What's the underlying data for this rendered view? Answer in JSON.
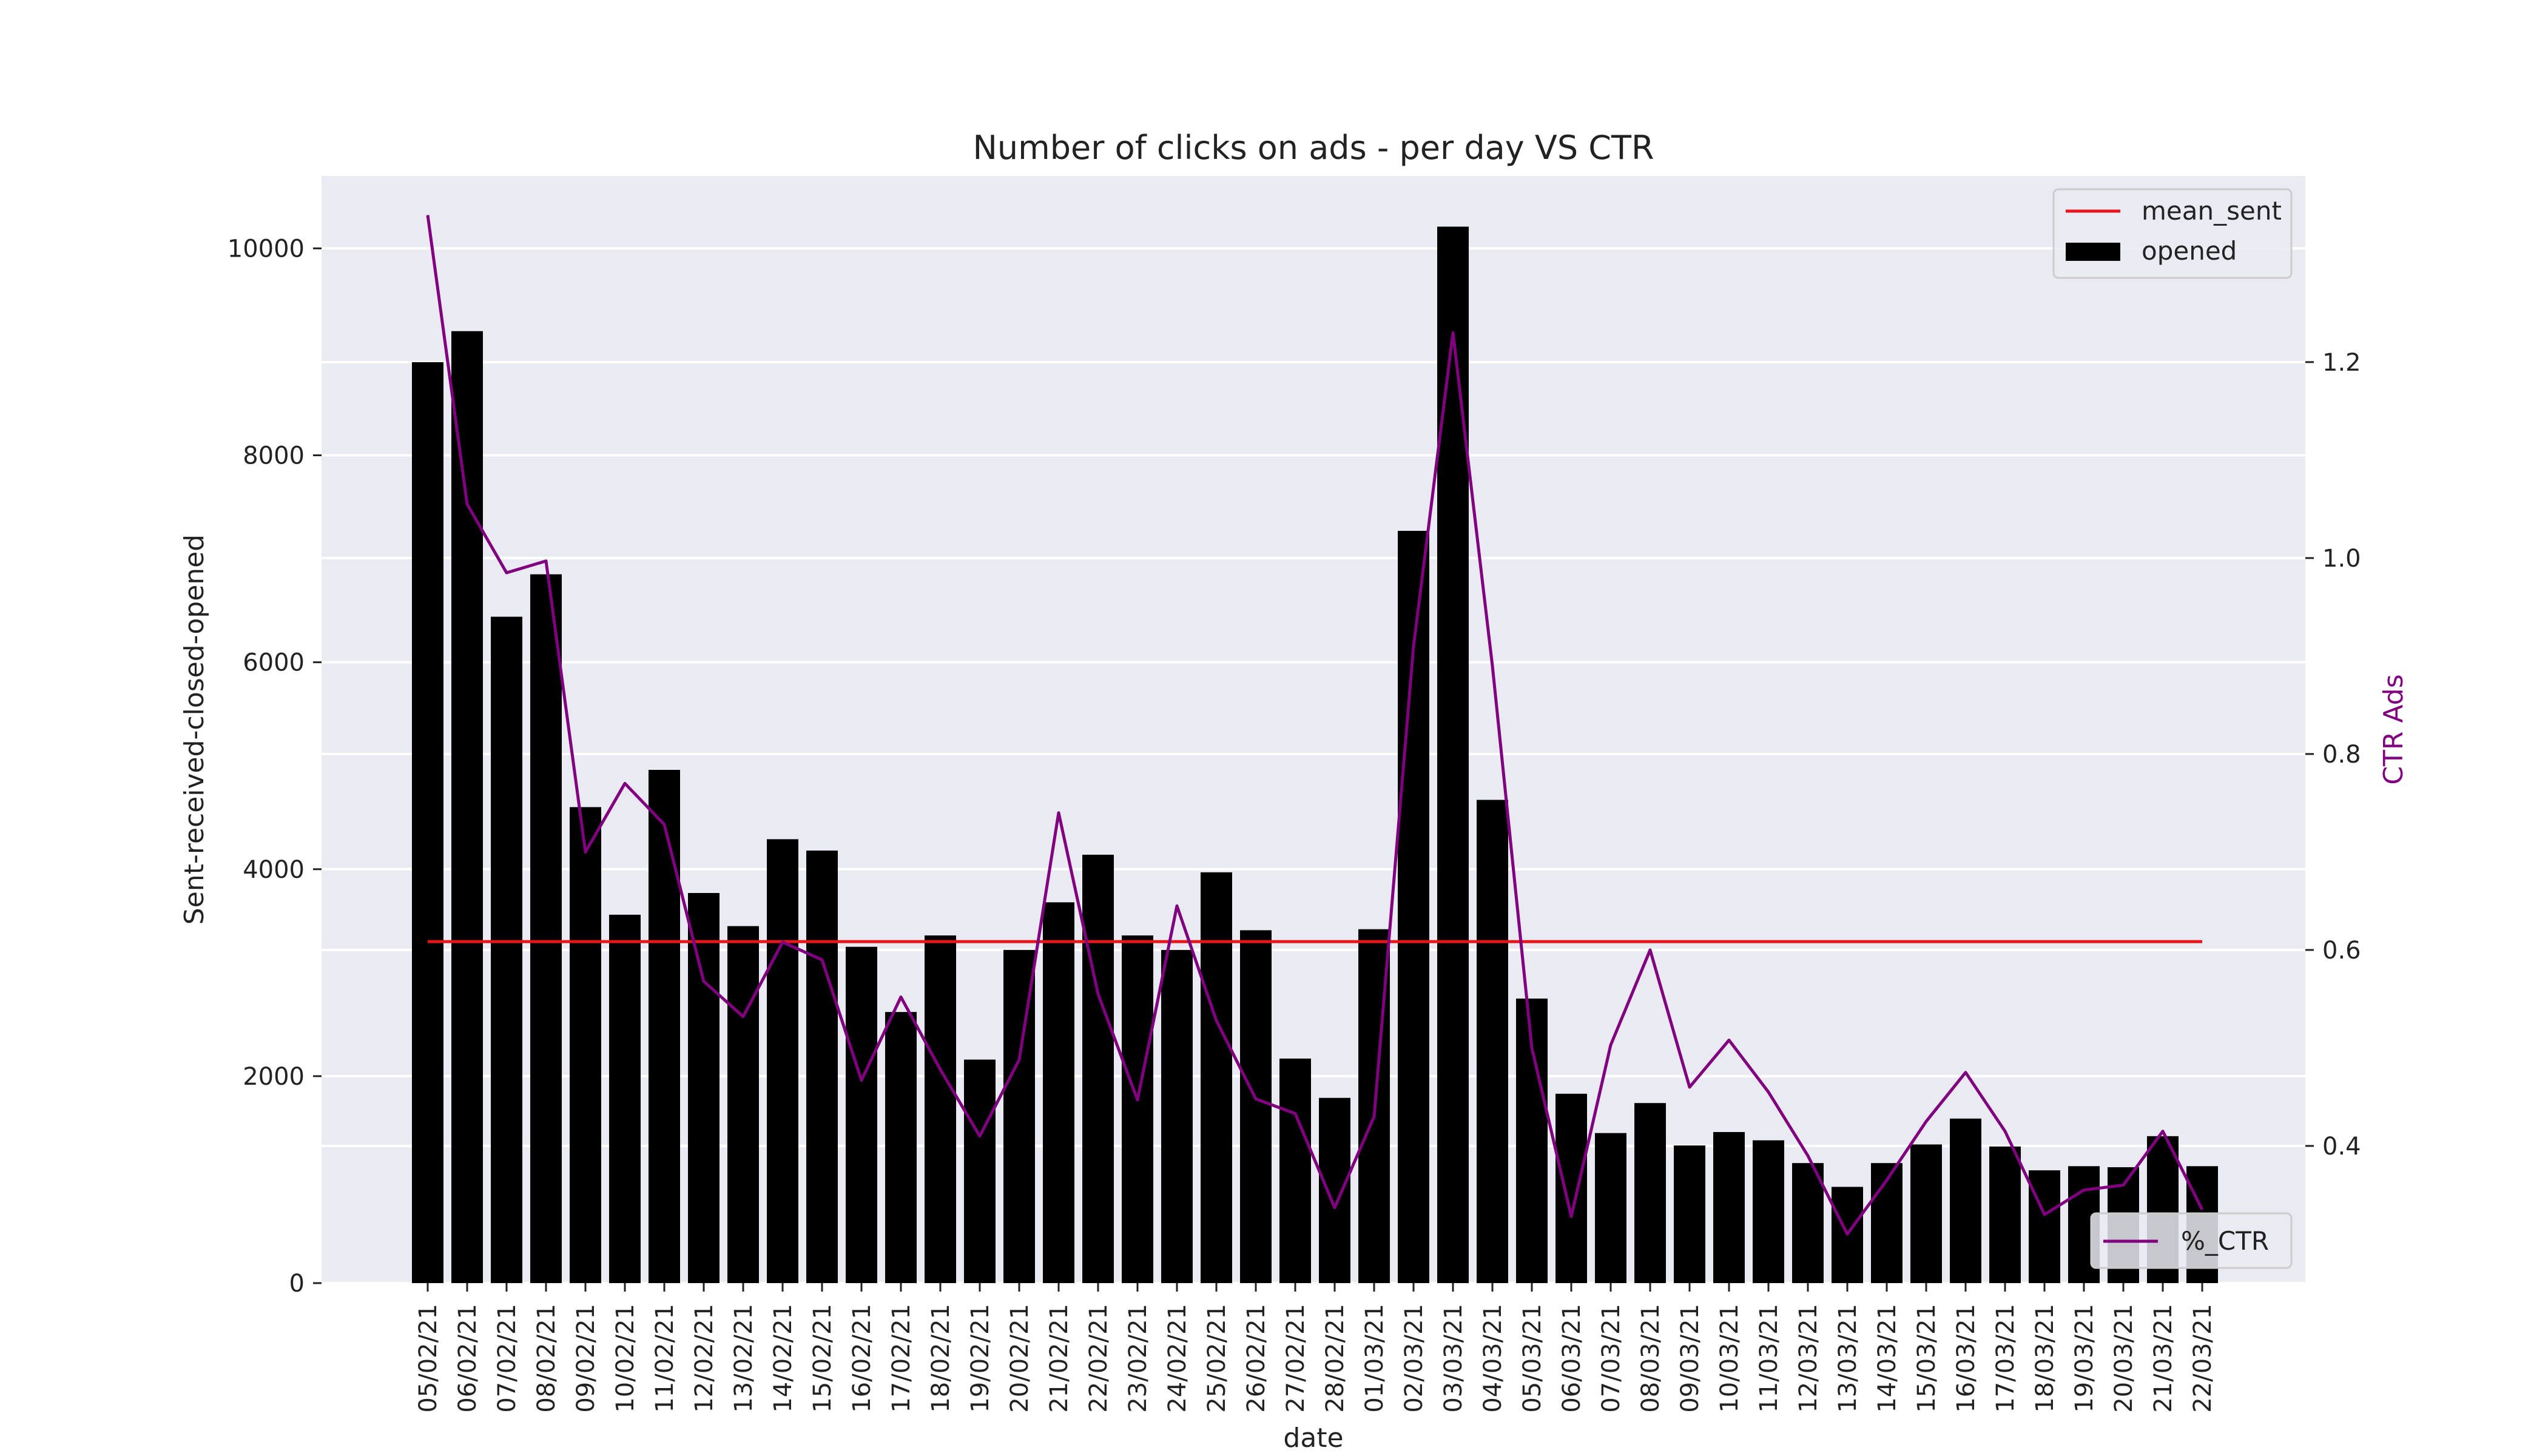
{
  "chart_data": {
    "type": "bar",
    "title": "Number of clicks on ads - per day VS CTR",
    "xlabel": "date",
    "ylabel": "Sent-received-closed-opened",
    "y2label": "CTR Ads",
    "ylim": [
      0,
      10700
    ],
    "y2lim": [
      0.26,
      1.39
    ],
    "yticks": [
      0,
      2000,
      4000,
      6000,
      8000,
      10000
    ],
    "y2ticks": [
      0.4,
      0.6,
      0.8,
      1.0,
      1.2
    ],
    "categories": [
      "05/02/21",
      "06/02/21",
      "07/02/21",
      "08/02/21",
      "09/02/21",
      "10/02/21",
      "11/02/21",
      "12/02/21",
      "13/02/21",
      "14/02/21",
      "15/02/21",
      "16/02/21",
      "17/02/21",
      "18/02/21",
      "19/02/21",
      "20/02/21",
      "21/02/21",
      "22/02/21",
      "23/02/21",
      "24/02/21",
      "25/02/21",
      "26/02/21",
      "27/02/21",
      "28/02/21",
      "01/03/21",
      "02/03/21",
      "03/03/21",
      "04/03/21",
      "05/03/21",
      "06/03/21",
      "07/03/21",
      "08/03/21",
      "09/03/21",
      "10/03/21",
      "11/03/21",
      "12/03/21",
      "13/03/21",
      "14/03/21",
      "15/03/21",
      "16/03/21",
      "17/03/21",
      "18/03/21",
      "19/03/21",
      "20/03/21",
      "21/03/21",
      "22/03/21"
    ],
    "series": [
      {
        "name": "opened",
        "type": "bar",
        "axis": "left",
        "color": "#000000",
        "values": [
          8900,
          9200,
          6440,
          6850,
          4600,
          3560,
          4960,
          3770,
          3450,
          4290,
          4180,
          3250,
          2620,
          3360,
          2160,
          3220,
          3680,
          4140,
          3360,
          3220,
          3970,
          3410,
          2170,
          1790,
          3420,
          7270,
          10210,
          4670,
          2750,
          1830,
          1450,
          1740,
          1330,
          1460,
          1380,
          1160,
          930,
          1160,
          1340,
          1590,
          1320,
          1090,
          1130,
          1120,
          1420,
          1130
        ]
      },
      {
        "name": "mean_sent",
        "type": "line",
        "axis": "left",
        "color": "#e8161b",
        "values": [
          3300,
          3300,
          3300,
          3300,
          3300,
          3300,
          3300,
          3300,
          3300,
          3300,
          3300,
          3300,
          3300,
          3300,
          3300,
          3300,
          3300,
          3300,
          3300,
          3300,
          3300,
          3300,
          3300,
          3300,
          3300,
          3300,
          3300,
          3300,
          3300,
          3300,
          3300,
          3300,
          3300,
          3300,
          3300,
          3300,
          3300,
          3300,
          3300,
          3300,
          3300,
          3300,
          3300,
          3300,
          3300,
          3300
        ]
      },
      {
        "name": "%_CTR",
        "type": "line",
        "axis": "right",
        "color": "#800080",
        "values": [
          1.35,
          1.055,
          0.985,
          0.997,
          0.7,
          0.77,
          0.728,
          0.568,
          0.532,
          0.608,
          0.59,
          0.467,
          0.552,
          0.478,
          0.41,
          0.488,
          0.74,
          0.555,
          0.447,
          0.645,
          0.528,
          0.448,
          0.433,
          0.337,
          0.43,
          0.91,
          1.23,
          0.89,
          0.5,
          0.328,
          0.503,
          0.6,
          0.46,
          0.508,
          0.455,
          0.39,
          0.31,
          0.365,
          0.425,
          0.475,
          0.415,
          0.33,
          0.355,
          0.36,
          0.415,
          0.335
        ]
      }
    ],
    "legend": {
      "upper": {
        "position": "top-right",
        "entries": [
          "mean_sent",
          "opened"
        ]
      },
      "lower": {
        "position": "bottom-right",
        "entries": [
          "%_CTR"
        ]
      }
    },
    "colors": {
      "background": "#eaeaf2",
      "bar": "#000000",
      "mean": "#e8161b",
      "ctr": "#800080",
      "ctr_axis_label": "#800080"
    },
    "grid": true
  }
}
